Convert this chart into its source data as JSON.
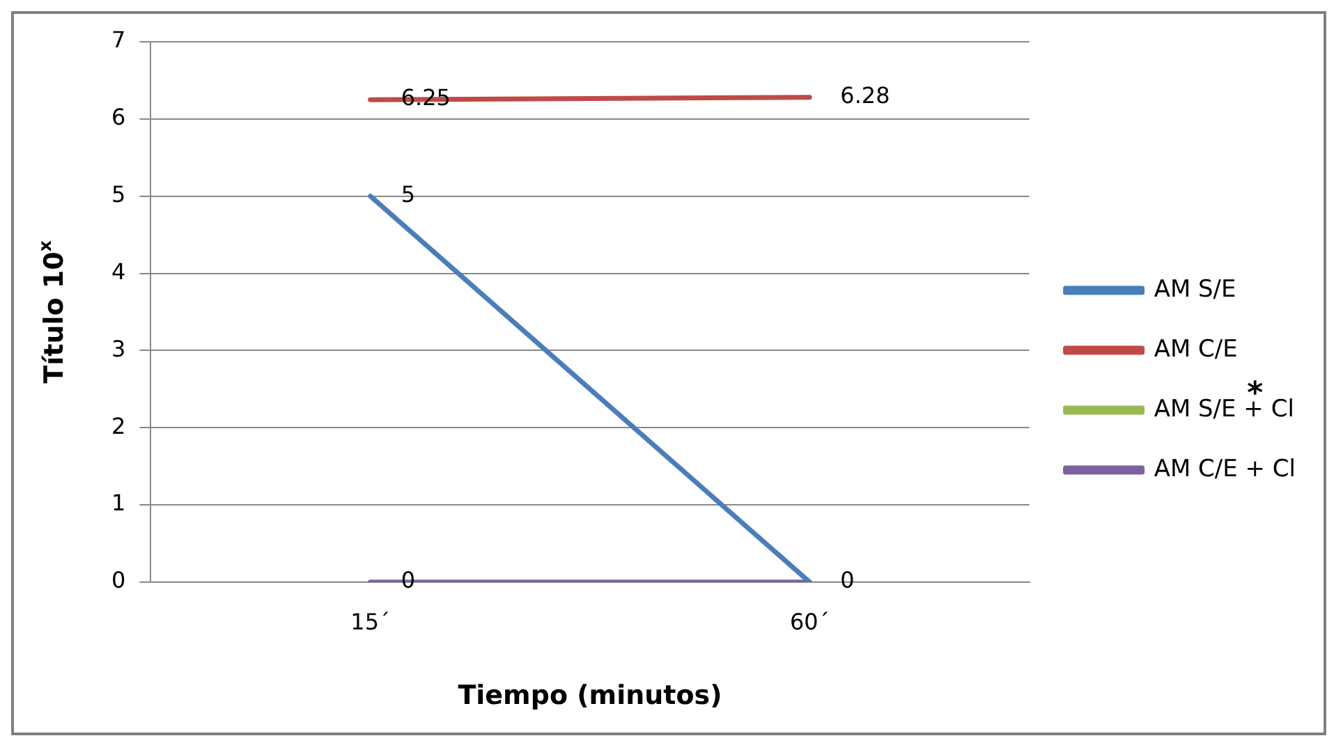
{
  "chart_data": {
    "type": "line",
    "xlabel": "Tiempo (minutos)",
    "ylabel": "Título 10$^{x}$",
    "categories": [
      "15´",
      "60´"
    ],
    "ylim": [
      0,
      7
    ],
    "yticks": [
      0,
      1,
      2,
      3,
      4,
      5,
      6,
      7
    ],
    "grid": "y",
    "legend": "right",
    "marker": "none",
    "line_style": "solid",
    "annotations": [
      "*"
    ],
    "series": [
      {
        "name": "AM S/E",
        "color": "#4a7ebb",
        "values": [
          5,
          0
        ],
        "value_labels": [
          "5",
          "0"
        ]
      },
      {
        "name": "AM C/E",
        "color": "#be4b48",
        "values": [
          6.25,
          6.28
        ],
        "value_labels": [
          "6.25",
          "6.28"
        ]
      },
      {
        "name": "AM S/E + Cl",
        "color": "#98b954",
        "values": [
          null,
          null
        ]
      },
      {
        "name": "AM C/E + Cl",
        "color": "#7d60a0",
        "values": [
          0,
          0
        ],
        "value_labels": [
          "0",
          null
        ]
      }
    ]
  }
}
